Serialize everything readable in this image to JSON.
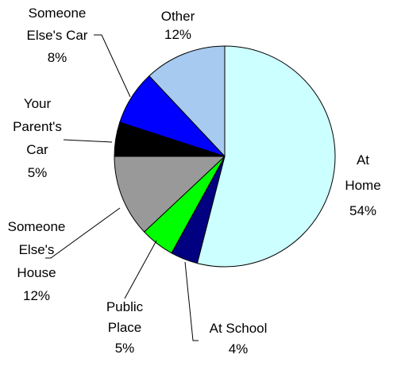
{
  "chart_data": {
    "type": "pie",
    "categories": [
      "At Home",
      "At School",
      "Public\nPlace",
      "Someone\nElse's\nHouse",
      "Your\nParent's\nCar",
      "Someone\nElse's Car",
      "Other"
    ],
    "values": [
      54,
      4,
      5,
      12,
      5,
      8,
      12
    ],
    "value_labels": [
      "54%",
      "4%",
      "5%",
      "12%",
      "5%",
      "8%",
      "12%"
    ],
    "colors": [
      "#ccffff",
      "#000080",
      "#00ff00",
      "#999999",
      "#000000",
      "#0000ff",
      "#a6caf0"
    ]
  }
}
